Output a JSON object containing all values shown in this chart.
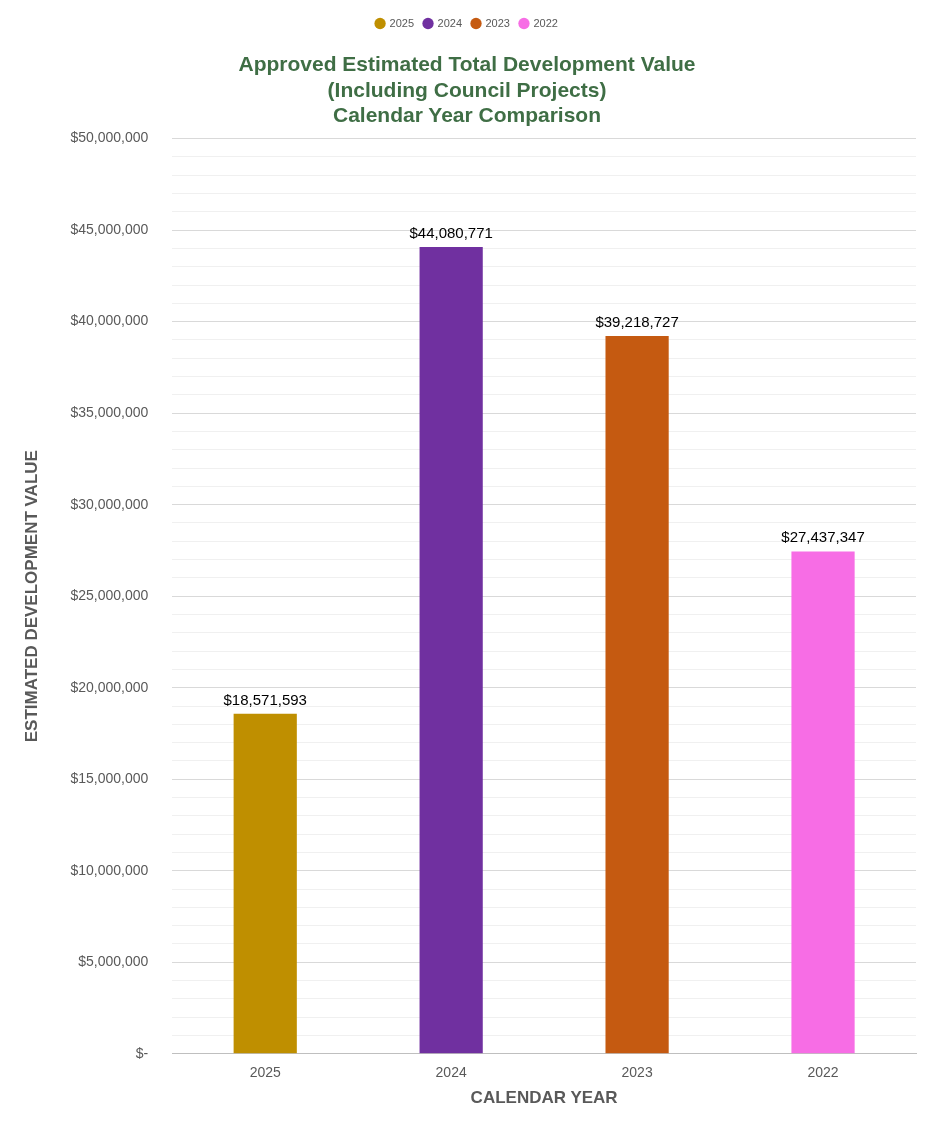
{
  "chart_data": {
    "type": "bar",
    "title": [
      "Approved Estimated Total Development Value",
      "(Including Council Projects)",
      "Calendar Year Comparison"
    ],
    "xlabel": "CALENDAR YEAR",
    "ylabel": "ESTIMATED DEVELOPMENT VALUE",
    "categories": [
      "2025",
      "2024",
      "2023",
      "2022"
    ],
    "series": [
      {
        "name": "2025",
        "color": "#bf8f00",
        "values": [
          18571593,
          null,
          null,
          null
        ],
        "value_labels": [
          "$18,571,593",
          null,
          null,
          null
        ]
      },
      {
        "name": "2024",
        "color": "#7030a0",
        "values": [
          null,
          44080771,
          null,
          null
        ],
        "value_labels": [
          null,
          "$44,080,771",
          null,
          null
        ]
      },
      {
        "name": "2023",
        "color": "#c55a11",
        "values": [
          null,
          null,
          39218727,
          null
        ],
        "value_labels": [
          null,
          null,
          "$39,218,727",
          null
        ]
      },
      {
        "name": "2022",
        "color": "#f76de5",
        "values": [
          null,
          null,
          null,
          27437347
        ],
        "value_labels": [
          null,
          null,
          null,
          "$27,437,347"
        ]
      }
    ],
    "ylim": [
      0,
      50000000
    ],
    "yticks": [
      {
        "value": 0,
        "label": "$-"
      },
      {
        "value": 1000000,
        "label": null
      },
      {
        "value": 2000000,
        "label": null
      },
      {
        "value": 3000000,
        "label": null
      },
      {
        "value": 4000000,
        "label": null
      },
      {
        "value": 5000000,
        "label": "$5,000,000"
      },
      {
        "value": 6000000,
        "label": null
      },
      {
        "value": 7000000,
        "label": null
      },
      {
        "value": 8000000,
        "label": null
      },
      {
        "value": 9000000,
        "label": null
      },
      {
        "value": 10000000,
        "label": "$10,000,000"
      },
      {
        "value": 11000000,
        "label": null
      },
      {
        "value": 12000000,
        "label": null
      },
      {
        "value": 13000000,
        "label": null
      },
      {
        "value": 14000000,
        "label": null
      },
      {
        "value": 15000000,
        "label": "$15,000,000"
      },
      {
        "value": 16000000,
        "label": null
      },
      {
        "value": 17000000,
        "label": null
      },
      {
        "value": 18000000,
        "label": null
      },
      {
        "value": 19000000,
        "label": null
      },
      {
        "value": 20000000,
        "label": "$20,000,000"
      },
      {
        "value": 21000000,
        "label": null
      },
      {
        "value": 22000000,
        "label": null
      },
      {
        "value": 23000000,
        "label": null
      },
      {
        "value": 24000000,
        "label": null
      },
      {
        "value": 25000000,
        "label": "$25,000,000"
      },
      {
        "value": 26000000,
        "label": null
      },
      {
        "value": 27000000,
        "label": null
      },
      {
        "value": 28000000,
        "label": null
      },
      {
        "value": 29000000,
        "label": null
      },
      {
        "value": 30000000,
        "label": "$30,000,000"
      },
      {
        "value": 31000000,
        "label": null
      },
      {
        "value": 32000000,
        "label": null
      },
      {
        "value": 33000000,
        "label": null
      },
      {
        "value": 34000000,
        "label": null
      },
      {
        "value": 35000000,
        "label": "$35,000,000"
      },
      {
        "value": 36000000,
        "label": null
      },
      {
        "value": 37000000,
        "label": null
      },
      {
        "value": 38000000,
        "label": null
      },
      {
        "value": 39000000,
        "label": null
      },
      {
        "value": 40000000,
        "label": "$40,000,000"
      },
      {
        "value": 41000000,
        "label": null
      },
      {
        "value": 42000000,
        "label": null
      },
      {
        "value": 43000000,
        "label": null
      },
      {
        "value": 44000000,
        "label": null
      },
      {
        "value": 45000000,
        "label": "$45,000,000"
      },
      {
        "value": 46000000,
        "label": null
      },
      {
        "value": 47000000,
        "label": null
      },
      {
        "value": 48000000,
        "label": null
      },
      {
        "value": 49000000,
        "label": null
      },
      {
        "value": 50000000,
        "label": "$50,000,000"
      }
    ],
    "grid": "y",
    "legend": "top"
  }
}
